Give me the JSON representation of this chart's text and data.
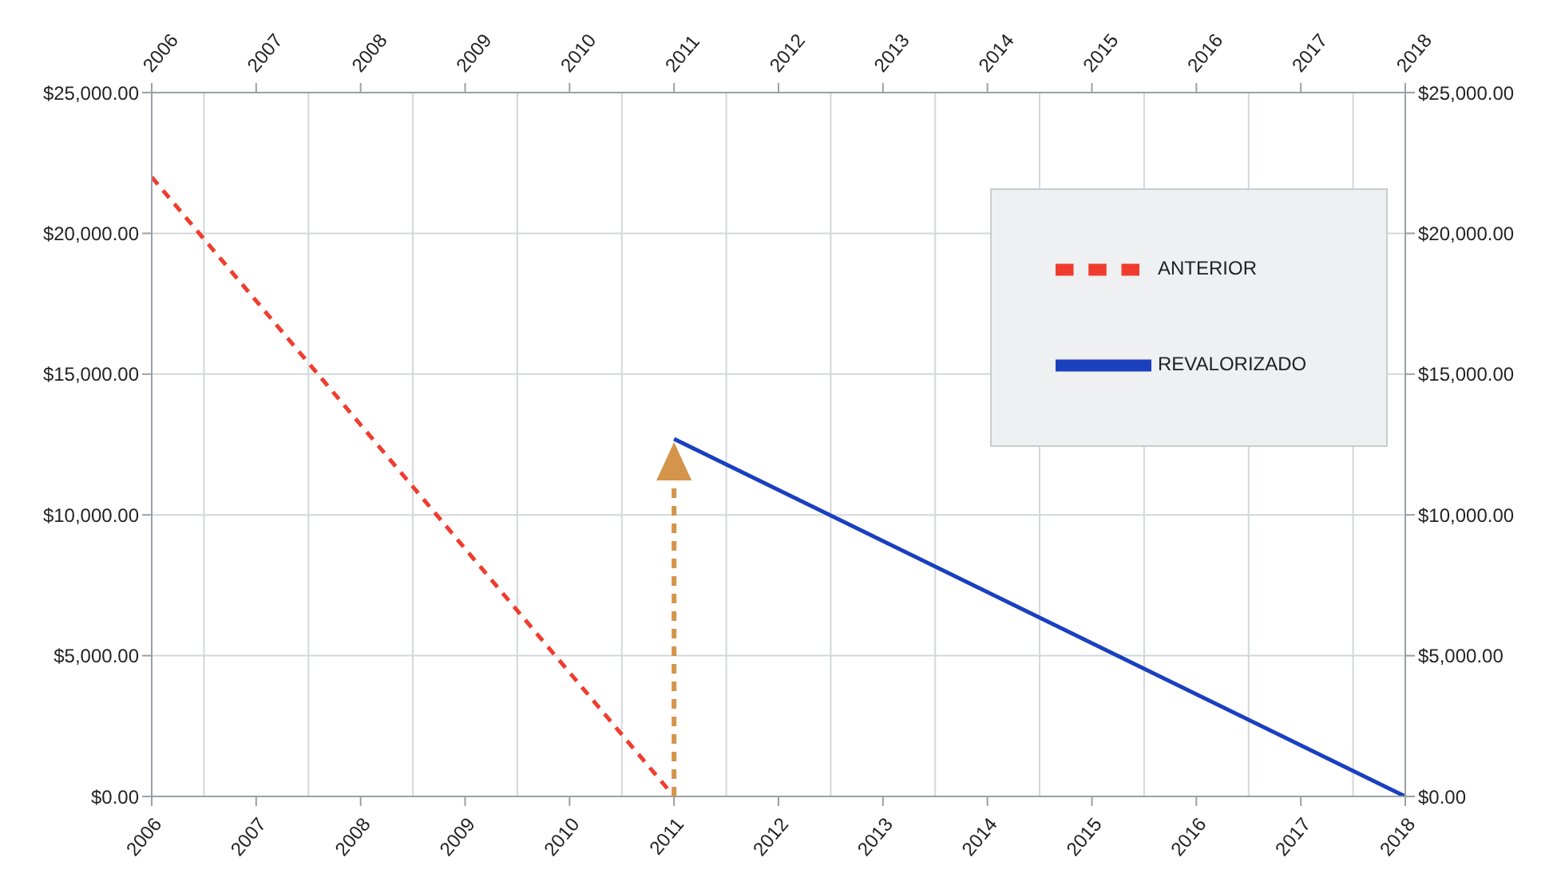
{
  "chart_data": {
    "type": "line",
    "series": [
      {
        "name": "REVALORIZADO",
        "color": "#1a3fbf",
        "x": [
          2011,
          2018
        ],
        "values": [
          12700,
          0
        ],
        "line_style": "solid"
      },
      {
        "name": "ANTERIOR",
        "color": "#f03c2e",
        "x": [
          2006,
          2011
        ],
        "values": [
          22000,
          0
        ],
        "line_style": "dashed"
      }
    ],
    "xlim": [
      2006,
      2018
    ],
    "xticks": [
      2006,
      2007,
      2008,
      2009,
      2010,
      2011,
      2012,
      2013,
      2014,
      2015,
      2016,
      2017,
      2018
    ],
    "x2lim": [
      2006,
      2018
    ],
    "x2ticks": [
      2006,
      2007,
      2008,
      2009,
      2010,
      2011,
      2012,
      2013,
      2014,
      2015,
      2016,
      2017,
      2018
    ],
    "ylim": [
      0,
      25000
    ],
    "yticks": [
      {
        "value": 0,
        "label": "$0.00"
      },
      {
        "value": 5000,
        "label": "$5,000.00"
      },
      {
        "value": 10000,
        "label": "$10,000.00"
      },
      {
        "value": 15000,
        "label": "$15,000.00"
      },
      {
        "value": 20000,
        "label": "$20,000.00"
      },
      {
        "value": 25000,
        "label": "$25,000.00"
      }
    ],
    "y2lim": [
      0,
      25000
    ],
    "y2ticks": [
      {
        "value": 0,
        "label": "$0.00"
      },
      {
        "value": 5000,
        "label": "$5,000.00"
      },
      {
        "value": 10000,
        "label": "$10,000.00"
      },
      {
        "value": 15000,
        "label": "$15,000.00"
      },
      {
        "value": 20000,
        "label": "$20,000.00"
      },
      {
        "value": 25000,
        "label": "$25,000.00"
      }
    ],
    "grid": true,
    "legend": "top right",
    "marker": "none"
  }
}
